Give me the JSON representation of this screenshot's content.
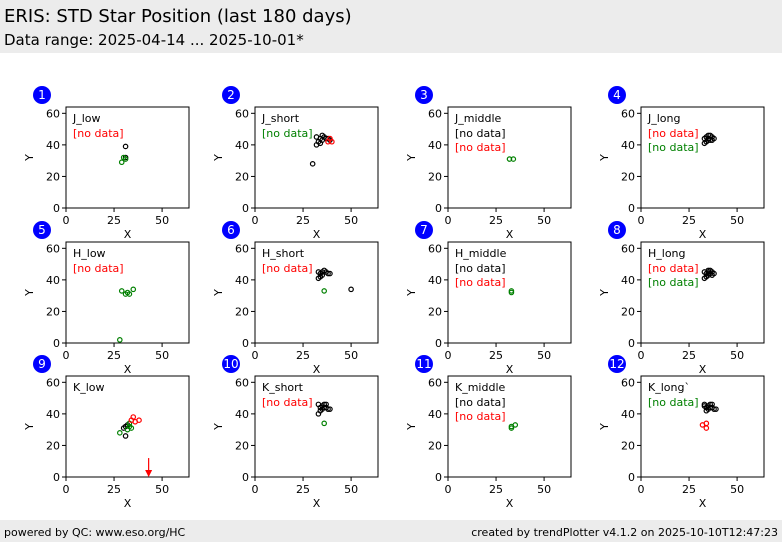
{
  "header": {
    "title": "ERIS: STD Star Position (last 180 days)",
    "subtitle": "Data range: 2025-04-14 ... 2025-10-01*"
  },
  "footer": {
    "left": "powered by QC: www.eso.org/HC",
    "right": "created by trendPlotter v4.1.2 on 2025-10-10T12:47:23"
  },
  "colors": {
    "black": "#000000",
    "green": "#008000",
    "red": "#ff0000",
    "badge": "#0000ff",
    "header_bg": "#ececec"
  },
  "chart_data": [
    {
      "type": "scatter",
      "panel": 1,
      "name": "J_low",
      "xlabel": "X",
      "ylabel": "Y",
      "xlim": [
        0,
        64
      ],
      "ylim": [
        0,
        64
      ],
      "xticks": [
        0,
        25,
        50
      ],
      "yticks": [
        0,
        20,
        40,
        60
      ],
      "notes": [
        {
          "text": "[no data]",
          "color": "red"
        }
      ],
      "series": [
        {
          "color": "black",
          "points": [
            [
              31,
              39
            ],
            [
              31,
              32
            ]
          ]
        },
        {
          "color": "green",
          "points": [
            [
              29,
              29
            ],
            [
              30,
              32
            ],
            [
              31,
              31
            ]
          ]
        }
      ]
    },
    {
      "type": "scatter",
      "panel": 2,
      "name": "J_short",
      "xlabel": "X",
      "ylabel": "Y",
      "xlim": [
        0,
        64
      ],
      "ylim": [
        0,
        64
      ],
      "xticks": [
        0,
        25,
        50
      ],
      "yticks": [
        0,
        20,
        40,
        60
      ],
      "notes": [
        {
          "text": "[no data]",
          "color": "green"
        }
      ],
      "series": [
        {
          "color": "black",
          "points": [
            [
              32,
              45
            ],
            [
              34,
              44
            ],
            [
              35,
              46
            ],
            [
              36,
              45
            ],
            [
              37,
              44
            ],
            [
              35,
              43
            ],
            [
              33,
              42
            ],
            [
              32,
              40
            ],
            [
              34,
              41
            ],
            [
              38,
              44
            ],
            [
              39,
              43
            ],
            [
              30,
              28
            ]
          ]
        },
        {
          "color": "red",
          "points": [
            [
              38,
              42
            ],
            [
              39,
              44
            ],
            [
              40,
              42
            ]
          ]
        }
      ]
    },
    {
      "type": "scatter",
      "panel": 3,
      "name": "J_middle",
      "xlabel": "X",
      "ylabel": "Y",
      "xlim": [
        0,
        64
      ],
      "ylim": [
        0,
        64
      ],
      "xticks": [
        0,
        25,
        50
      ],
      "yticks": [
        0,
        20,
        40,
        60
      ],
      "notes": [
        {
          "text": "[no data]",
          "color": "black"
        },
        {
          "text": "[no data]",
          "color": "red"
        }
      ],
      "series": [
        {
          "color": "green",
          "points": [
            [
              32,
              31
            ],
            [
              34,
              31
            ]
          ]
        }
      ]
    },
    {
      "type": "scatter",
      "panel": 4,
      "name": "J_long",
      "xlabel": "X",
      "ylabel": "Y",
      "xlim": [
        0,
        64
      ],
      "ylim": [
        0,
        64
      ],
      "xticks": [
        0,
        25,
        50
      ],
      "yticks": [
        0,
        20,
        40,
        60
      ],
      "notes": [
        {
          "text": "[no data]",
          "color": "red"
        },
        {
          "text": "[no data]",
          "color": "green"
        }
      ],
      "series": [
        {
          "color": "black",
          "points": [
            [
              33,
              44
            ],
            [
              34,
              45
            ],
            [
              35,
              44
            ],
            [
              36,
              46
            ],
            [
              37,
              45
            ],
            [
              38,
              44
            ],
            [
              35,
              43
            ],
            [
              34,
              42
            ],
            [
              36,
              43
            ],
            [
              33,
              41
            ],
            [
              37,
              43
            ],
            [
              35,
              46
            ]
          ]
        }
      ]
    },
    {
      "type": "scatter",
      "panel": 5,
      "name": "H_low",
      "xlabel": "X",
      "ylabel": "Y",
      "xlim": [
        0,
        64
      ],
      "ylim": [
        0,
        64
      ],
      "xticks": [
        0,
        25,
        50
      ],
      "yticks": [
        0,
        20,
        40,
        60
      ],
      "notes": [
        {
          "text": "[no data]",
          "color": "red"
        }
      ],
      "series": [
        {
          "color": "green",
          "points": [
            [
              29,
              33
            ],
            [
              31,
              31
            ],
            [
              32,
              32
            ],
            [
              33,
              31
            ],
            [
              35,
              34
            ],
            [
              28,
              2
            ]
          ]
        }
      ]
    },
    {
      "type": "scatter",
      "panel": 6,
      "name": "H_short",
      "xlabel": "X",
      "ylabel": "Y",
      "xlim": [
        0,
        64
      ],
      "ylim": [
        0,
        64
      ],
      "xticks": [
        0,
        25,
        50
      ],
      "yticks": [
        0,
        20,
        40,
        60
      ],
      "notes": [
        {
          "text": "[no data]",
          "color": "red"
        }
      ],
      "series": [
        {
          "color": "black",
          "points": [
            [
              33,
              45
            ],
            [
              34,
              44
            ],
            [
              35,
              43
            ],
            [
              36,
              46
            ],
            [
              37,
              45
            ],
            [
              38,
              44
            ],
            [
              34,
              42
            ],
            [
              33,
              41
            ],
            [
              35,
              45
            ],
            [
              39,
              44
            ],
            [
              50,
              34
            ]
          ]
        },
        {
          "color": "green",
          "points": [
            [
              36,
              33
            ]
          ]
        }
      ]
    },
    {
      "type": "scatter",
      "panel": 7,
      "name": "H_middle",
      "xlabel": "X",
      "ylabel": "Y",
      "xlim": [
        0,
        64
      ],
      "ylim": [
        0,
        64
      ],
      "xticks": [
        0,
        25,
        50
      ],
      "yticks": [
        0,
        20,
        40,
        60
      ],
      "notes": [
        {
          "text": "[no data]",
          "color": "black"
        },
        {
          "text": "[no data]",
          "color": "red"
        }
      ],
      "series": [
        {
          "color": "green",
          "points": [
            [
              33,
              33
            ],
            [
              33,
              32
            ]
          ]
        }
      ]
    },
    {
      "type": "scatter",
      "panel": 8,
      "name": "H_long",
      "xlabel": "X",
      "ylabel": "Y",
      "xlim": [
        0,
        64
      ],
      "ylim": [
        0,
        64
      ],
      "xticks": [
        0,
        25,
        50
      ],
      "yticks": [
        0,
        20,
        40,
        60
      ],
      "notes": [
        {
          "text": "[no data]",
          "color": "red"
        },
        {
          "text": "[no data]",
          "color": "green"
        }
      ],
      "series": [
        {
          "color": "black",
          "points": [
            [
              33,
              45
            ],
            [
              34,
              44
            ],
            [
              35,
              45
            ],
            [
              36,
              44
            ],
            [
              37,
              45
            ],
            [
              38,
              44
            ],
            [
              35,
              43
            ],
            [
              34,
              42
            ],
            [
              33,
              41
            ],
            [
              36,
              46
            ],
            [
              37,
              43
            ],
            [
              35,
              46
            ]
          ]
        }
      ]
    },
    {
      "type": "scatter",
      "panel": 9,
      "name": "K_low",
      "xlabel": "X",
      "ylabel": "Y",
      "xlim": [
        0,
        64
      ],
      "ylim": [
        0,
        64
      ],
      "xticks": [
        0,
        25,
        50
      ],
      "yticks": [
        0,
        20,
        40,
        60
      ],
      "notes": [],
      "series": [
        {
          "color": "black",
          "points": [
            [
              31,
              32
            ],
            [
              32,
              33
            ],
            [
              30,
              31
            ],
            [
              31,
              26
            ]
          ]
        },
        {
          "color": "green",
          "points": [
            [
              28,
              28
            ],
            [
              32,
              30
            ],
            [
              33,
              32
            ],
            [
              34,
              31
            ],
            [
              33,
              34
            ]
          ]
        },
        {
          "color": "red",
          "points": [
            [
              34,
              36
            ],
            [
              35,
              38
            ],
            [
              36,
              35
            ],
            [
              38,
              36
            ]
          ]
        }
      ],
      "annotations": [
        {
          "type": "arrow",
          "color": "red",
          "x": 43,
          "y_from": 12,
          "y_to": 0
        }
      ]
    },
    {
      "type": "scatter",
      "panel": 10,
      "name": "K_short",
      "xlabel": "X",
      "ylabel": "Y",
      "xlim": [
        0,
        64
      ],
      "ylim": [
        0,
        64
      ],
      "xticks": [
        0,
        25,
        50
      ],
      "yticks": [
        0,
        20,
        40,
        60
      ],
      "notes": [
        {
          "text": "[no data]",
          "color": "red"
        }
      ],
      "series": [
        {
          "color": "black",
          "points": [
            [
              33,
              46
            ],
            [
              34,
              44
            ],
            [
              35,
              45
            ],
            [
              36,
              46
            ],
            [
              37,
              44
            ],
            [
              38,
              43
            ],
            [
              35,
              43
            ],
            [
              34,
              42
            ],
            [
              33,
              40
            ],
            [
              39,
              43
            ],
            [
              36,
              44
            ],
            [
              37,
              46
            ]
          ]
        },
        {
          "color": "green",
          "points": [
            [
              36,
              34
            ]
          ]
        }
      ]
    },
    {
      "type": "scatter",
      "panel": 11,
      "name": "K_middle",
      "xlabel": "X",
      "ylabel": "Y",
      "xlim": [
        0,
        64
      ],
      "ylim": [
        0,
        64
      ],
      "xticks": [
        0,
        25,
        50
      ],
      "yticks": [
        0,
        20,
        40,
        60
      ],
      "notes": [
        {
          "text": "[no data]",
          "color": "black"
        },
        {
          "text": "[no data]",
          "color": "red"
        }
      ],
      "series": [
        {
          "color": "green",
          "points": [
            [
              33,
              32
            ],
            [
              35,
              33
            ],
            [
              33,
              31
            ]
          ]
        }
      ]
    },
    {
      "type": "scatter",
      "panel": 12,
      "name": "K_long`",
      "xlabel": "X",
      "ylabel": "Y",
      "xlim": [
        0,
        64
      ],
      "ylim": [
        0,
        64
      ],
      "xticks": [
        0,
        25,
        50
      ],
      "yticks": [
        0,
        20,
        40,
        60
      ],
      "notes": [
        {
          "text": "[no data]",
          "color": "green"
        }
      ],
      "series": [
        {
          "color": "black",
          "points": [
            [
              33,
              46
            ],
            [
              34,
              44
            ],
            [
              35,
              45
            ],
            [
              36,
              46
            ],
            [
              37,
              44
            ],
            [
              38,
              43
            ],
            [
              35,
              43
            ],
            [
              34,
              42
            ],
            [
              33,
              45
            ],
            [
              39,
              43
            ],
            [
              36,
              44
            ],
            [
              37,
              46
            ]
          ]
        },
        {
          "color": "red",
          "points": [
            [
              32,
              33
            ],
            [
              34,
              31
            ],
            [
              34,
              34
            ]
          ]
        }
      ]
    }
  ]
}
